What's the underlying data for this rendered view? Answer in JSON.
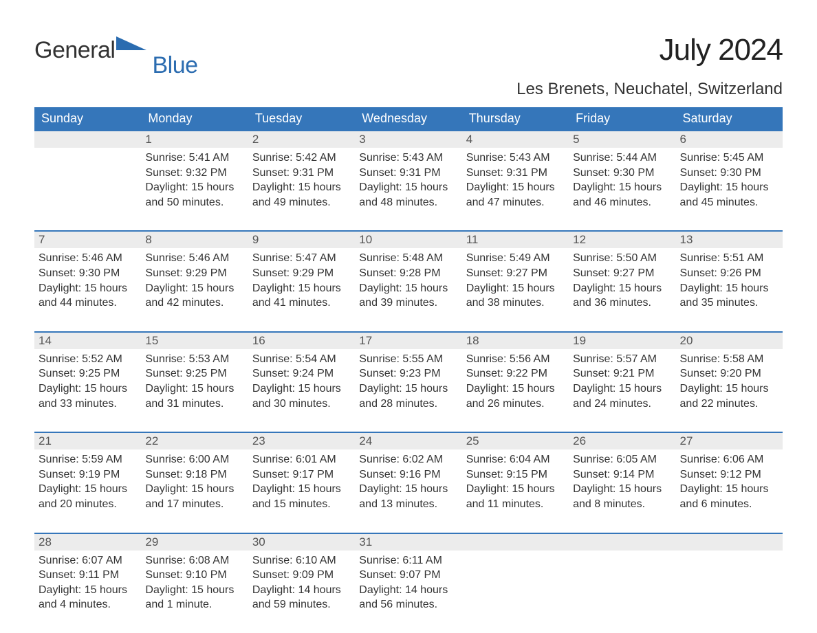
{
  "brand": {
    "part1": "General",
    "part2": "Blue",
    "flag_color": "#2b6cb0"
  },
  "title": "July 2024",
  "location": "Les Brenets, Neuchatel, Switzerland",
  "colors": {
    "header_bg": "#3576ba",
    "header_text": "#ffffff",
    "daynum_bg": "#ececec",
    "daynum_text": "#555555",
    "row_border": "#3576ba",
    "body_text": "#333333",
    "page_bg": "#ffffff"
  },
  "typography": {
    "title_fontsize": 44,
    "location_fontsize": 24,
    "header_fontsize": 18,
    "daynum_fontsize": 17,
    "cell_fontsize": 16
  },
  "layout": {
    "columns": 7,
    "first_weekday": "Sunday",
    "start_offset": 1
  },
  "weekdays": [
    "Sunday",
    "Monday",
    "Tuesday",
    "Wednesday",
    "Thursday",
    "Friday",
    "Saturday"
  ],
  "days": [
    {
      "n": 1,
      "sunrise": "5:41 AM",
      "sunset": "9:32 PM",
      "daylight": "15 hours and 50 minutes."
    },
    {
      "n": 2,
      "sunrise": "5:42 AM",
      "sunset": "9:31 PM",
      "daylight": "15 hours and 49 minutes."
    },
    {
      "n": 3,
      "sunrise": "5:43 AM",
      "sunset": "9:31 PM",
      "daylight": "15 hours and 48 minutes."
    },
    {
      "n": 4,
      "sunrise": "5:43 AM",
      "sunset": "9:31 PM",
      "daylight": "15 hours and 47 minutes."
    },
    {
      "n": 5,
      "sunrise": "5:44 AM",
      "sunset": "9:30 PM",
      "daylight": "15 hours and 46 minutes."
    },
    {
      "n": 6,
      "sunrise": "5:45 AM",
      "sunset": "9:30 PM",
      "daylight": "15 hours and 45 minutes."
    },
    {
      "n": 7,
      "sunrise": "5:46 AM",
      "sunset": "9:30 PM",
      "daylight": "15 hours and 44 minutes."
    },
    {
      "n": 8,
      "sunrise": "5:46 AM",
      "sunset": "9:29 PM",
      "daylight": "15 hours and 42 minutes."
    },
    {
      "n": 9,
      "sunrise": "5:47 AM",
      "sunset": "9:29 PM",
      "daylight": "15 hours and 41 minutes."
    },
    {
      "n": 10,
      "sunrise": "5:48 AM",
      "sunset": "9:28 PM",
      "daylight": "15 hours and 39 minutes."
    },
    {
      "n": 11,
      "sunrise": "5:49 AM",
      "sunset": "9:27 PM",
      "daylight": "15 hours and 38 minutes."
    },
    {
      "n": 12,
      "sunrise": "5:50 AM",
      "sunset": "9:27 PM",
      "daylight": "15 hours and 36 minutes."
    },
    {
      "n": 13,
      "sunrise": "5:51 AM",
      "sunset": "9:26 PM",
      "daylight": "15 hours and 35 minutes."
    },
    {
      "n": 14,
      "sunrise": "5:52 AM",
      "sunset": "9:25 PM",
      "daylight": "15 hours and 33 minutes."
    },
    {
      "n": 15,
      "sunrise": "5:53 AM",
      "sunset": "9:25 PM",
      "daylight": "15 hours and 31 minutes."
    },
    {
      "n": 16,
      "sunrise": "5:54 AM",
      "sunset": "9:24 PM",
      "daylight": "15 hours and 30 minutes."
    },
    {
      "n": 17,
      "sunrise": "5:55 AM",
      "sunset": "9:23 PM",
      "daylight": "15 hours and 28 minutes."
    },
    {
      "n": 18,
      "sunrise": "5:56 AM",
      "sunset": "9:22 PM",
      "daylight": "15 hours and 26 minutes."
    },
    {
      "n": 19,
      "sunrise": "5:57 AM",
      "sunset": "9:21 PM",
      "daylight": "15 hours and 24 minutes."
    },
    {
      "n": 20,
      "sunrise": "5:58 AM",
      "sunset": "9:20 PM",
      "daylight": "15 hours and 22 minutes."
    },
    {
      "n": 21,
      "sunrise": "5:59 AM",
      "sunset": "9:19 PM",
      "daylight": "15 hours and 20 minutes."
    },
    {
      "n": 22,
      "sunrise": "6:00 AM",
      "sunset": "9:18 PM",
      "daylight": "15 hours and 17 minutes."
    },
    {
      "n": 23,
      "sunrise": "6:01 AM",
      "sunset": "9:17 PM",
      "daylight": "15 hours and 15 minutes."
    },
    {
      "n": 24,
      "sunrise": "6:02 AM",
      "sunset": "9:16 PM",
      "daylight": "15 hours and 13 minutes."
    },
    {
      "n": 25,
      "sunrise": "6:04 AM",
      "sunset": "9:15 PM",
      "daylight": "15 hours and 11 minutes."
    },
    {
      "n": 26,
      "sunrise": "6:05 AM",
      "sunset": "9:14 PM",
      "daylight": "15 hours and 8 minutes."
    },
    {
      "n": 27,
      "sunrise": "6:06 AM",
      "sunset": "9:12 PM",
      "daylight": "15 hours and 6 minutes."
    },
    {
      "n": 28,
      "sunrise": "6:07 AM",
      "sunset": "9:11 PM",
      "daylight": "15 hours and 4 minutes."
    },
    {
      "n": 29,
      "sunrise": "6:08 AM",
      "sunset": "9:10 PM",
      "daylight": "15 hours and 1 minute."
    },
    {
      "n": 30,
      "sunrise": "6:10 AM",
      "sunset": "9:09 PM",
      "daylight": "14 hours and 59 minutes."
    },
    {
      "n": 31,
      "sunrise": "6:11 AM",
      "sunset": "9:07 PM",
      "daylight": "14 hours and 56 minutes."
    }
  ],
  "labels": {
    "sunrise": "Sunrise:",
    "sunset": "Sunset:",
    "daylight": "Daylight:"
  }
}
